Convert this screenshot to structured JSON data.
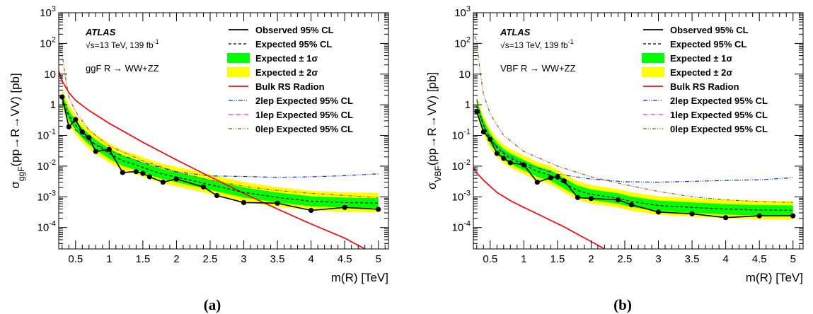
{
  "figure": {
    "panel_labels": [
      "(a)",
      "(b)"
    ],
    "atlas_label": "ATLAS",
    "energy_lumi": "√s=13 TeV, 139 fb",
    "lumi_superscript": "-1"
  },
  "colors": {
    "observed": "#000000",
    "expected": "#000000",
    "band1": "#00ff00",
    "band2": "#ffff00",
    "theory": "#e8161b",
    "lep2": "#0a2ed6",
    "lep1": "#d63ad6",
    "lep0": "#9a5a18"
  },
  "legend": {
    "observed": "Observed 95% CL",
    "expected": "Expected 95% CL",
    "band1": "Expected ± 1σ",
    "band2": "Expected ± 2σ",
    "theory": "Bulk RS Radion",
    "lep2": "2lep Expected 95% CL",
    "lep1": "1lep Expected 95% CL",
    "lep0": "0lep Expected 95% CL"
  },
  "chart_data": [
    {
      "type": "line",
      "process_label": "ggF R → WW+ZZ",
      "ylabel": "σggF(pp→R→VV) [pb]",
      "ylabel_sub": "ggF",
      "xlabel": "m(R) [TeV]",
      "xlim": [
        0.25,
        5.15
      ],
      "ylim": [
        2e-05,
        1000
      ],
      "yscale": "log",
      "x_ticks": [
        "0.5",
        "1",
        "1.5",
        "2",
        "2.5",
        "3",
        "3.5",
        "4",
        "4.5",
        "5"
      ],
      "y_ticks": [
        "10^-4",
        "10^-3",
        "10^-2",
        "10^-1",
        "1",
        "10",
        "10^2",
        "10^3"
      ],
      "observed": {
        "x": [
          0.3,
          0.4,
          0.5,
          0.6,
          0.7,
          0.8,
          1.0,
          1.2,
          1.4,
          1.5,
          1.6,
          1.8,
          2.0,
          2.4,
          2.6,
          3.0,
          3.5,
          4.0,
          4.5,
          5.0
        ],
        "y": [
          1.8,
          0.19,
          0.33,
          0.13,
          0.085,
          0.03,
          0.035,
          0.0062,
          0.0066,
          0.0058,
          0.0045,
          0.003,
          0.0038,
          0.0021,
          0.0011,
          0.00065,
          0.00062,
          0.00036,
          0.00045,
          0.00039
        ]
      },
      "expected": {
        "x": [
          0.3,
          0.4,
          0.5,
          0.6,
          0.7,
          0.8,
          1.0,
          1.2,
          1.4,
          1.6,
          1.8,
          2.0,
          2.4,
          2.6,
          3.0,
          3.5,
          4.0,
          4.5,
          5.0
        ],
        "y": [
          1.6,
          0.45,
          0.22,
          0.12,
          0.075,
          0.05,
          0.026,
          0.015,
          0.011,
          0.0075,
          0.0055,
          0.0044,
          0.0028,
          0.0022,
          0.0014,
          0.00095,
          0.00072,
          0.00065,
          0.00062
        ]
      },
      "band1_factor": [
        0.68,
        1.45
      ],
      "band2_factor": [
        0.5,
        2.15
      ],
      "theory": {
        "x": [
          0.25,
          0.3,
          0.4,
          0.5,
          0.7,
          1.0,
          1.5,
          2.0,
          2.5,
          3.0,
          3.5,
          4.0,
          4.5,
          4.8
        ],
        "y": [
          13,
          6.0,
          2.5,
          1.4,
          0.65,
          0.25,
          0.06,
          0.016,
          0.0045,
          0.0013,
          0.0004,
          0.00013,
          4.5e-05,
          2e-05
        ]
      },
      "lep2": {
        "x": [
          0.3,
          0.5,
          0.7,
          1.0,
          1.5,
          2.0,
          2.5,
          3.0,
          3.5,
          4.0,
          4.5,
          5.0
        ],
        "y": [
          1.2,
          0.15,
          0.065,
          0.032,
          0.013,
          0.0065,
          0.0048,
          0.0046,
          0.0043,
          0.0045,
          0.0049,
          0.0056
        ]
      },
      "lep0": {
        "x": [
          0.27,
          0.3,
          0.35,
          0.4,
          0.5,
          0.7,
          1.0,
          1.5,
          2.0,
          2.5,
          3.0,
          3.5,
          4.0,
          4.5,
          5.0
        ],
        "y": [
          60,
          45,
          8,
          1.8,
          0.6,
          0.15,
          0.045,
          0.015,
          0.0065,
          0.0035,
          0.0022,
          0.0016,
          0.0013,
          0.0011,
          0.00095
        ]
      }
    },
    {
      "type": "line",
      "process_label": "VBF R → WW+ZZ",
      "ylabel": "σVBF(pp→R→VV) [pb]",
      "ylabel_sub": "VBF",
      "xlabel": "m(R) [TeV]",
      "xlim": [
        0.25,
        5.15
      ],
      "ylim": [
        2e-05,
        1000
      ],
      "yscale": "log",
      "x_ticks": [
        "0.5",
        "1",
        "1.5",
        "2",
        "2.5",
        "3",
        "3.5",
        "4",
        "4.5",
        "5"
      ],
      "y_ticks": [
        "10^-4",
        "10^-3",
        "10^-2",
        "10^-1",
        "1",
        "10",
        "10^2",
        "10^3"
      ],
      "observed": {
        "x": [
          0.3,
          0.4,
          0.5,
          0.6,
          0.7,
          0.8,
          1.0,
          1.2,
          1.4,
          1.5,
          1.6,
          1.8,
          2.0,
          2.4,
          2.6,
          3.0,
          3.5,
          4.0,
          4.5,
          5.0
        ],
        "y": [
          0.6,
          0.13,
          0.075,
          0.026,
          0.018,
          0.013,
          0.011,
          0.003,
          0.0042,
          0.0045,
          0.0033,
          0.00095,
          0.00088,
          0.0008,
          0.00055,
          0.00032,
          0.00028,
          0.00021,
          0.00024,
          0.00024
        ]
      },
      "expected": {
        "x": [
          0.3,
          0.4,
          0.5,
          0.6,
          0.7,
          0.8,
          1.0,
          1.2,
          1.4,
          1.6,
          1.8,
          2.0,
          2.4,
          2.6,
          3.0,
          3.5,
          4.0,
          4.5,
          5.0
        ],
        "y": [
          0.9,
          0.22,
          0.08,
          0.04,
          0.025,
          0.018,
          0.011,
          0.0068,
          0.005,
          0.0028,
          0.0016,
          0.0012,
          0.0009,
          0.0007,
          0.00052,
          0.00045,
          0.0004,
          0.00037,
          0.00036
        ]
      },
      "band1_factor": [
        0.66,
        1.45
      ],
      "band2_factor": [
        0.5,
        2.0
      ],
      "theory": {
        "x": [
          0.25,
          0.3,
          0.4,
          0.5,
          0.6,
          0.8,
          1.0,
          1.2,
          1.4,
          1.6,
          1.8,
          2.0,
          2.2
        ],
        "y": [
          0.009,
          0.006,
          0.0035,
          0.0022,
          0.0014,
          0.00075,
          0.00045,
          0.00028,
          0.00017,
          0.000105,
          6e-05,
          3.5e-05,
          2e-05
        ]
      },
      "lep2": {
        "x": [
          0.3,
          0.4,
          0.5,
          0.7,
          1.0,
          1.5,
          2.0,
          2.5,
          3.0,
          3.5,
          4.0,
          4.5,
          5.0
        ],
        "y": [
          1.5,
          0.2,
          0.07,
          0.028,
          0.012,
          0.0055,
          0.0038,
          0.0031,
          0.003,
          0.0032,
          0.0034,
          0.0036,
          0.0042
        ]
      },
      "lep0": {
        "x": [
          0.27,
          0.3,
          0.35,
          0.4,
          0.5,
          0.7,
          1.0,
          1.5,
          2.0,
          2.5,
          3.0,
          3.5,
          4.0,
          4.5,
          5.0
        ],
        "y": [
          170,
          120,
          12,
          2.2,
          0.5,
          0.1,
          0.03,
          0.01,
          0.0045,
          0.0025,
          0.0015,
          0.001,
          0.0008,
          0.0007,
          0.00065
        ]
      }
    }
  ]
}
